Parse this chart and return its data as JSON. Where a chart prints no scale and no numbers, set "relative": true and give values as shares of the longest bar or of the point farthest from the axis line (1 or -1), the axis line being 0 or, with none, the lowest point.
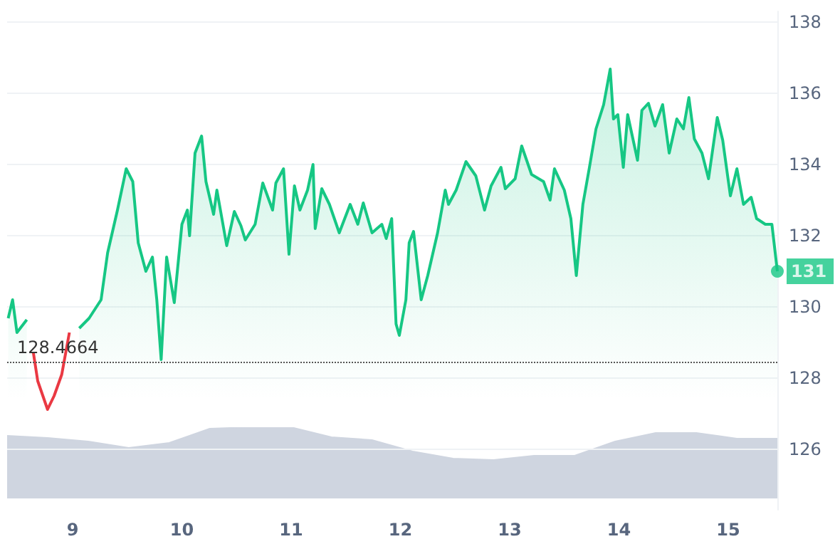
{
  "chart_data": [
    {
      "type": "area",
      "x": [
        8.41,
        8.45,
        8.49,
        8.58,
        8.64,
        8.68,
        8.77,
        8.83,
        8.9,
        8.97,
        9.06,
        9.15,
        9.26,
        9.32,
        9.41,
        9.49,
        9.55,
        9.6,
        9.67,
        9.73,
        9.77,
        9.81,
        9.86,
        9.93,
        10.0,
        10.05,
        10.07,
        10.12,
        10.18,
        10.22,
        10.29,
        10.32,
        10.41,
        10.48,
        10.54,
        10.58,
        10.67,
        10.74,
        10.83,
        10.86,
        10.93,
        10.98,
        11.03,
        11.08,
        11.15,
        11.2,
        11.22,
        11.28,
        11.35,
        11.44,
        11.54,
        11.61,
        11.66,
        11.74,
        11.83,
        11.87,
        11.92,
        11.96,
        11.99,
        12.05,
        12.08,
        12.12,
        12.19,
        12.25,
        12.34,
        12.41,
        12.44,
        12.51,
        12.6,
        12.69,
        12.77,
        12.83,
        12.92,
        12.96,
        13.05,
        13.11,
        13.2,
        13.31,
        13.37,
        13.41,
        13.5,
        13.56,
        13.61,
        13.67,
        13.73,
        13.79,
        13.86,
        13.92,
        13.95,
        13.99,
        14.04,
        14.08,
        14.17,
        14.21,
        14.27,
        14.33,
        14.4,
        14.46,
        14.53,
        14.59,
        14.64,
        14.69,
        14.76,
        14.82,
        14.9,
        14.95,
        15.02,
        15.08,
        15.14,
        15.21,
        15.26,
        15.34,
        15.4,
        15.45
      ],
      "series": [
        {
          "color": "#16c784",
          "values": [
            129.68,
            130.2,
            129.28,
            129.64,
            null,
            null,
            null,
            null,
            null,
            null,
            129.4,
            129.68,
            130.2,
            131.52,
            132.72,
            133.88,
            133.52,
            131.8,
            131.0,
            131.4,
            130.2,
            128.52,
            131.4,
            130.12,
            132.32,
            132.72,
            132.0,
            134.32,
            134.8,
            133.52,
            132.6,
            133.28,
            131.72,
            132.68,
            132.28,
            131.88,
            132.32,
            133.48,
            132.72,
            133.48,
            133.88,
            131.48,
            133.4,
            132.72,
            133.28,
            134.0,
            132.2,
            133.32,
            132.88,
            132.08,
            132.88,
            132.32,
            132.92,
            132.08,
            132.32,
            131.92,
            132.48,
            129.52,
            129.2,
            130.2,
            131.8,
            132.12,
            130.2,
            130.88,
            132.08,
            133.28,
            132.88,
            133.28,
            134.08,
            133.68,
            132.72,
            133.4,
            133.92,
            133.32,
            133.6,
            134.52,
            133.72,
            133.52,
            133.0,
            133.88,
            133.28,
            132.48,
            130.88,
            132.88,
            133.92,
            135.0,
            135.68,
            136.68,
            135.28,
            135.4,
            133.92,
            135.4,
            134.12,
            135.52,
            135.72,
            135.08,
            135.68,
            134.32,
            135.28,
            135.0,
            135.88,
            134.72,
            134.32,
            133.6,
            135.32,
            134.68,
            133.12,
            133.88,
            132.88,
            133.08,
            132.48,
            132.32,
            132.32,
            131
          ]
        },
        {
          "type": "line",
          "color": "#ea3943",
          "x": [
            8.64,
            8.68,
            8.77,
            8.83,
            8.9,
            8.97
          ],
          "values": [
            128.72,
            127.92,
            127.12,
            127.5,
            128.1,
            129.28
          ]
        }
      ],
      "xlim": [
        8.4,
        15.45
      ],
      "xticks": [
        9,
        10,
        11,
        12,
        13,
        14,
        15
      ],
      "ylim": [
        124.3,
        138.3
      ],
      "yticks": [
        126,
        128,
        130,
        132,
        134,
        136,
        138
      ],
      "grid": "y",
      "marker": "none",
      "line_style": "solid",
      "ref_lines": [
        {
          "axis": "y",
          "value": 128.4664,
          "label": "128.4664",
          "color": "#555555",
          "line_style": "dotted"
        }
      ],
      "annotations": [
        {
          "text": "131",
          "x": 15.45,
          "y": 131
        }
      ]
    },
    {
      "type": "area",
      "relative": true,
      "categories": [
        null,
        null,
        null,
        null,
        null,
        null,
        null,
        null,
        null,
        null,
        null,
        null,
        null,
        null,
        null,
        null,
        null,
        null,
        null,
        null
      ],
      "series": [
        {
          "color": "#cfd5e0",
          "values": [
            0.88,
            0.85,
            0.8,
            0.71,
            0.78,
            0.98,
            1.0,
            1.0,
            0.86,
            0.82,
            0.66,
            0.56,
            0.54,
            0.6,
            0.6,
            0.8,
            0.92,
            0.92,
            0.84,
            0.84
          ]
        }
      ]
    }
  ]
}
